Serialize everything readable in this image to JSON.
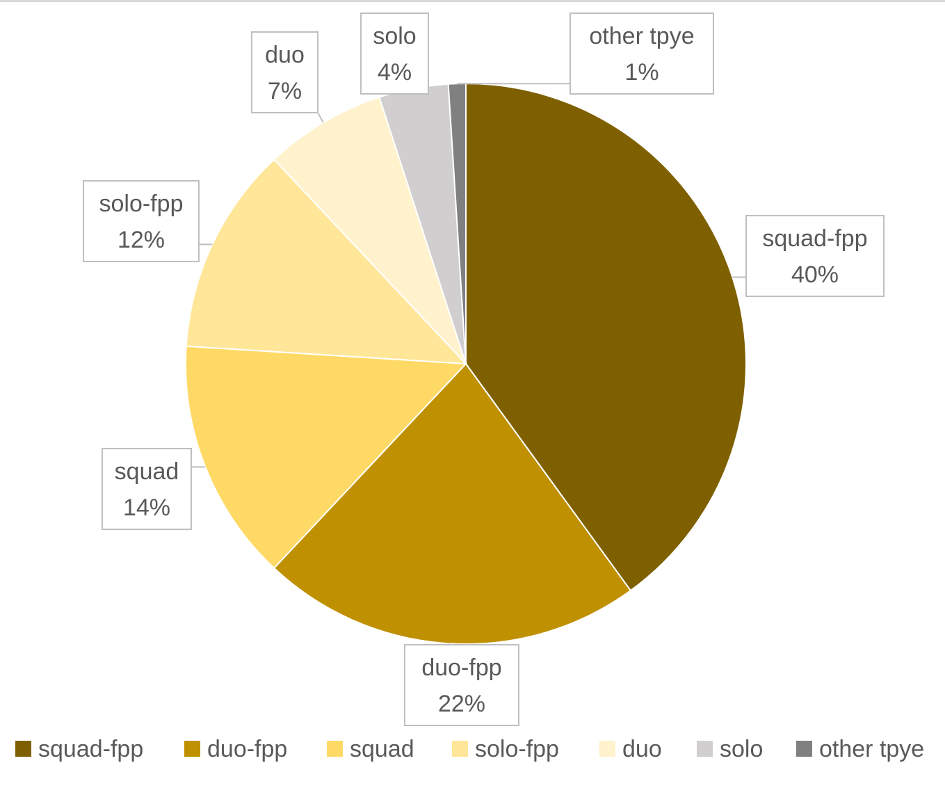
{
  "chart_data": {
    "type": "pie",
    "title": "",
    "categories": [
      "squad-fpp",
      "duo-fpp",
      "squad",
      "solo-fpp",
      "duo",
      "solo",
      "other tpye"
    ],
    "values": [
      40,
      22,
      14,
      12,
      7,
      4,
      1
    ],
    "value_labels": [
      "40%",
      "22%",
      "14%",
      "12%",
      "7%",
      "4%",
      "1%"
    ],
    "colors": [
      "#7f6000",
      "#bf9000",
      "#ffd966",
      "#ffe699",
      "#fff2cc",
      "#d0cece",
      "#808080"
    ],
    "data_labels": "category and percentage in callout boxes",
    "legend_position": "bottom"
  }
}
